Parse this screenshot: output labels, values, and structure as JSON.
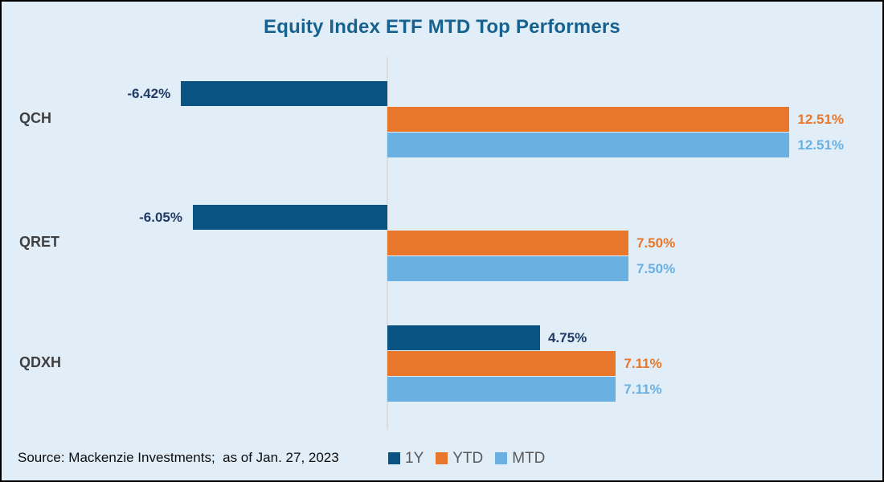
{
  "frame": {
    "background_color": "#e1eef8",
    "border_color": "#000000"
  },
  "title": "Equity Index ETF MTD Top Performers",
  "title_color": "#17618f",
  "source_note": "Source: Mackenzie Investments;  as of Jan. 27, 2023",
  "legend": {
    "items": [
      {
        "label": "1Y",
        "color": "#0a5484"
      },
      {
        "label": "YTD",
        "color": "#e8772c"
      },
      {
        "label": "MTD",
        "color": "#6ab1e1"
      }
    ],
    "position": "bottom"
  },
  "chart_data": {
    "type": "bar",
    "orientation": "horizontal",
    "title": "Equity Index ETF MTD Top Performers",
    "categories": [
      "QCH",
      "QRET",
      "QDXH"
    ],
    "series": [
      {
        "name": "1Y",
        "color": "#0a5484",
        "label_color": "#1f3b64",
        "values": [
          -6.42,
          -6.05,
          4.75
        ],
        "labels": [
          "-6.42%",
          "-6.05%",
          "4.75%"
        ]
      },
      {
        "name": "YTD",
        "color": "#e8772c",
        "label_color": "#e8772c",
        "values": [
          12.51,
          7.5,
          7.11
        ],
        "labels": [
          "12.51%",
          "7.50%",
          "7.11%"
        ]
      },
      {
        "name": "MTD",
        "color": "#6ab1e1",
        "label_color": "#6ab1e1",
        "values": [
          12.51,
          7.5,
          7.11
        ],
        "labels": [
          "12.51%",
          "7.50%",
          "7.11%"
        ]
      }
    ],
    "value_suffix": "%",
    "xlim": [
      -12,
      15.5
    ],
    "axis": {
      "zero_line": true,
      "gridlines": false,
      "tick_labels": false
    },
    "legend_position": "bottom",
    "category_label_color": "#3f3f3f",
    "data_labels": true
  }
}
